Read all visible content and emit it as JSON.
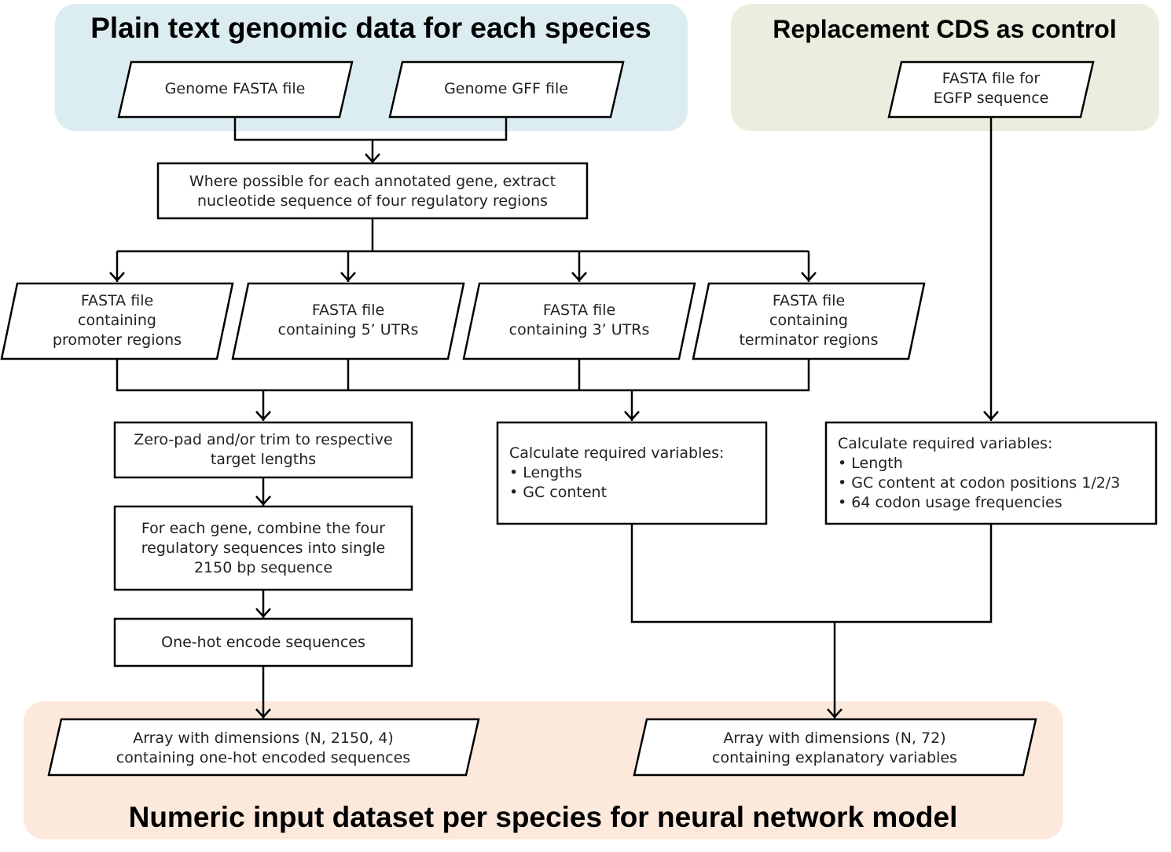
{
  "groups": {
    "plain_text": {
      "title": "Plain text genomic data for each species",
      "color": "#dcedf2"
    },
    "replacement": {
      "title": "Replacement CDS as control",
      "color": "#ebeedf"
    },
    "numeric": {
      "title": "Numeric input dataset per species for neural network model",
      "color": "#fde9dc"
    }
  },
  "nodes": {
    "genome_fasta": [
      "Genome FASTA file"
    ],
    "genome_gff": [
      "Genome GFF file"
    ],
    "egfp_fasta": [
      "FASTA file for",
      "EGFP sequence"
    ],
    "extract": [
      "Where possible for each annotated gene, extract",
      "nucleotide sequence of four regulatory regions"
    ],
    "fasta_promoter": [
      "FASTA file",
      "containing",
      "promoter regions"
    ],
    "fasta_5utr": [
      "FASTA file",
      "containing 5’ UTRs"
    ],
    "fasta_3utr": [
      "FASTA file",
      "containing 3’ UTRs"
    ],
    "fasta_terminator": [
      "FASTA file",
      "containing",
      "terminator regions"
    ],
    "zeropad": [
      "Zero-pad and/or trim to respective",
      "target lengths"
    ],
    "combine": [
      "For each gene, combine the four",
      "regulatory sequences into single",
      "2150 bp sequence"
    ],
    "onehot": [
      "One-hot encode sequences"
    ],
    "calc_mid": [
      "Calculate required variables:",
      "•   Lengths",
      "•   GC content"
    ],
    "calc_right": [
      "Calculate required variables:",
      "•   Length",
      "•   GC content at codon positions 1/2/3",
      "•   64 codon usage frequencies"
    ],
    "array_onehot": [
      "Array with dimensions (N, 2150, 4)",
      "containing one-hot encoded sequences"
    ],
    "array_vars": [
      "Array with dimensions (N, 72)",
      "containing explanatory variables"
    ]
  }
}
